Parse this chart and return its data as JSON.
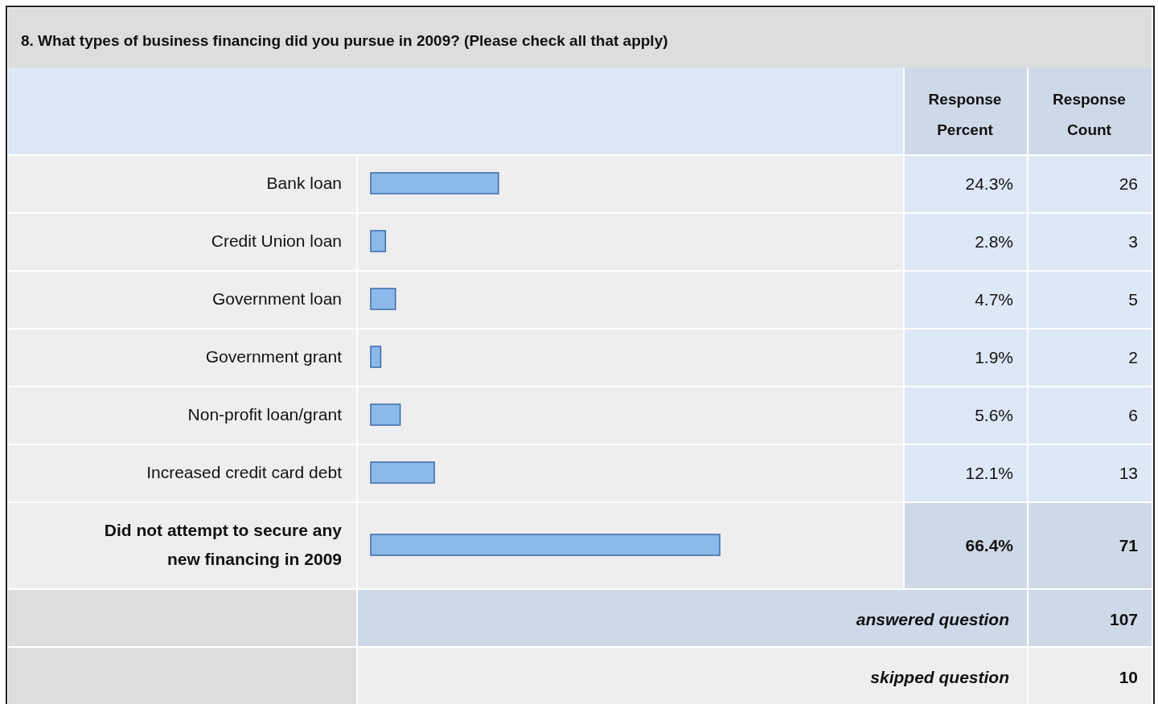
{
  "chart_data": {
    "type": "bar",
    "orientation": "horizontal",
    "title": "8. What types of business financing did you pursue in 2009? (Please check all that apply)",
    "categories": [
      "Bank loan",
      "Credit Union loan",
      "Government loan",
      "Government grant",
      "Non-profit loan/grant",
      "Increased credit card debt",
      "Did not attempt to secure any new financing in 2009"
    ],
    "values": [
      24.3,
      2.8,
      4.7,
      1.9,
      5.6,
      12.1,
      66.4
    ],
    "value_labels": [
      "24.3%",
      "2.8%",
      "4.7%",
      "1.9%",
      "5.6%",
      "12.1%",
      "66.4%"
    ],
    "color": "#8db9ea",
    "tick_labels": "y",
    "annotations": [
      "Response Percent",
      "Response Count",
      "26",
      "3",
      "5",
      "2",
      "6",
      "13",
      "71",
      "answered question",
      "107",
      "skipped question",
      "10"
    ]
  }
}
